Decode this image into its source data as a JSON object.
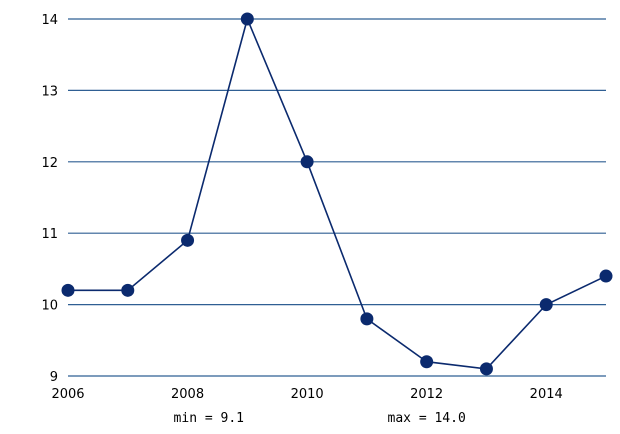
{
  "chart_data": {
    "type": "line",
    "x": [
      2006,
      2007,
      2008,
      2009,
      2010,
      2011,
      2012,
      2013,
      2014,
      2015
    ],
    "series": [
      {
        "values": [
          10.2,
          10.2,
          10.9,
          14.0,
          12.0,
          9.8,
          9.2,
          9.1,
          10.0,
          10.4
        ]
      }
    ],
    "xlim": [
      2006,
      2015
    ],
    "ylim": [
      9,
      14
    ],
    "x_ticks": [
      "2006",
      "2008",
      "2010",
      "2012",
      "2014"
    ],
    "y_ticks": [
      "9",
      "10",
      "11",
      "12",
      "13",
      "14"
    ],
    "grid": "horizontal",
    "line_color": "#0b2a6e",
    "grid_color": "#2f5f93",
    "annotations": {
      "min": "min = 9.1",
      "max": "max = 14.0"
    }
  }
}
